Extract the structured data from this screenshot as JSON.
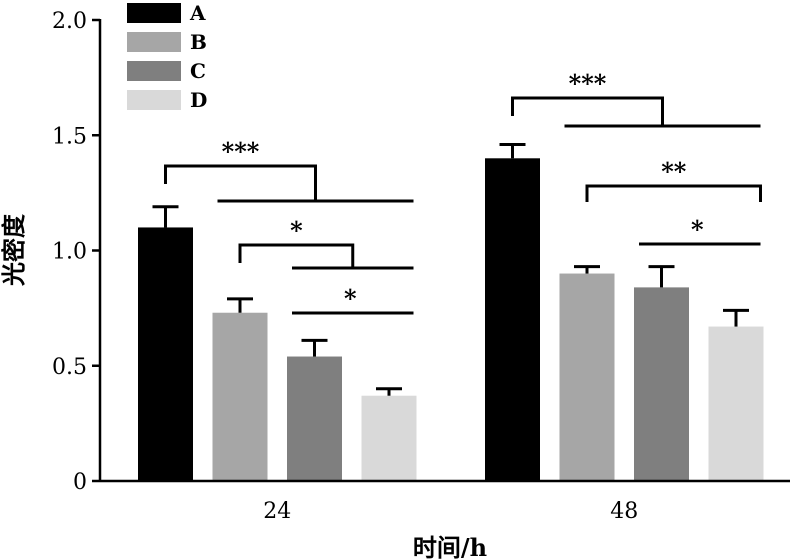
{
  "chart_data": {
    "type": "bar",
    "title": "",
    "xlabel": "时间/h",
    "ylabel": "光密度",
    "categories": [
      "24",
      "48"
    ],
    "ylim": [
      0,
      2.0
    ],
    "yticks": [
      "0",
      "0.5",
      "1.0",
      "1.5",
      "2.0"
    ],
    "legend_position": "top-left",
    "grid": false,
    "series": [
      {
        "name": "A",
        "color": "#000000",
        "values": [
          1.1,
          1.4
        ],
        "errors": [
          0.09,
          0.06
        ]
      },
      {
        "name": "B",
        "color": "#a6a6a6",
        "values": [
          0.73,
          0.9
        ],
        "errors": [
          0.06,
          0.03
        ]
      },
      {
        "name": "C",
        "color": "#7f7f7f",
        "values": [
          0.54,
          0.84
        ],
        "errors": [
          0.07,
          0.09
        ]
      },
      {
        "name": "D",
        "color": "#d9d9d9",
        "values": [
          0.37,
          0.67
        ],
        "errors": [
          0.03,
          0.07
        ]
      }
    ],
    "significance": [
      {
        "category": 0,
        "from": 0,
        "to": [
          1,
          2,
          3
        ],
        "label": "***"
      },
      {
        "category": 0,
        "from": 1,
        "to": [
          2,
          3
        ],
        "label": "*"
      },
      {
        "category": 0,
        "from": 2,
        "to": [
          3
        ],
        "label": "*"
      },
      {
        "category": 1,
        "from": 0,
        "to": [
          1,
          2,
          3
        ],
        "label": "***"
      },
      {
        "category": 1,
        "from": 1,
        "to": [
          3
        ],
        "label": "**"
      },
      {
        "category": 1,
        "from": 2,
        "to": [
          3
        ],
        "label": "*"
      }
    ]
  }
}
